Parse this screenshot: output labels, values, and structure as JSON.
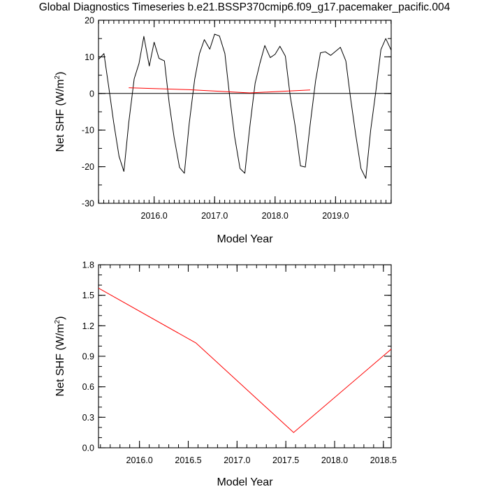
{
  "title": "Global Diagnostics Timeseries b.e21.BSSP370cmip6.f09_g17.pacemaker_pacific.004",
  "chart_data": [
    {
      "type": "line",
      "xlabel": "Model Year",
      "ylabel_main": "Net SHF (W/m",
      "ylabel_sup": "2",
      "ylabel_close": ")",
      "xlim": [
        2015.08,
        2019.92
      ],
      "ylim": [
        -30,
        20
      ],
      "xticks": [
        2016.0,
        2017.0,
        2018.0,
        2019.0
      ],
      "xtick_labels": [
        "2016.0",
        "2017.0",
        "2018.0",
        "2019.0"
      ],
      "yticks": [
        -30,
        -20,
        -10,
        0,
        10,
        20
      ],
      "ytick_labels": [
        "-30",
        "-20",
        "-10",
        "0",
        "10",
        "20"
      ],
      "zero_line": 0,
      "grid": false,
      "series": [
        {
          "color": "#000000",
          "x": [
            2015.08,
            2015.17,
            2015.25,
            2015.33,
            2015.42,
            2015.5,
            2015.58,
            2015.67,
            2015.75,
            2015.83,
            2015.92,
            2016.0,
            2016.08,
            2016.17,
            2016.25,
            2016.33,
            2016.42,
            2016.5,
            2016.58,
            2016.67,
            2016.75,
            2016.83,
            2016.92,
            2017.0,
            2017.08,
            2017.17,
            2017.25,
            2017.33,
            2017.42,
            2017.5,
            2017.58,
            2017.67,
            2017.75,
            2017.83,
            2017.92,
            2018.0,
            2018.08,
            2018.17,
            2018.25,
            2018.33,
            2018.42,
            2018.5,
            2018.58,
            2018.67,
            2018.75,
            2018.83,
            2018.92,
            2019.0,
            2019.08,
            2019.17,
            2019.25,
            2019.33,
            2019.42,
            2019.5,
            2019.58,
            2019.67,
            2019.75,
            2019.83,
            2019.92
          ],
          "y": [
            9.3,
            10.9,
            1.7,
            -7.8,
            -17.2,
            -21.3,
            -8.0,
            4.0,
            8.2,
            15.6,
            7.5,
            14.0,
            9.6,
            8.9,
            -2.8,
            -12.0,
            -20.2,
            -21.8,
            -8.2,
            3.8,
            10.9,
            14.7,
            12.1,
            16.2,
            15.7,
            10.9,
            -1.0,
            -11.7,
            -20.5,
            -21.8,
            -9.4,
            2.8,
            8.3,
            13.1,
            9.8,
            10.7,
            12.9,
            10.2,
            -0.7,
            -8.7,
            -19.8,
            -20.1,
            -8.5,
            3.5,
            11.1,
            11.4,
            10.4,
            11.5,
            12.6,
            8.9,
            -1.5,
            -10.9,
            -20.5,
            -23.2,
            -10.1,
            1.1,
            12.0,
            15.0,
            11.8
          ]
        },
        {
          "color": "#ff0000",
          "x": [
            2015.58,
            2016.58,
            2017.58,
            2018.58
          ],
          "y": [
            1.57,
            1.03,
            0.15,
            0.97
          ]
        }
      ]
    },
    {
      "type": "line",
      "xlabel": "Model Year",
      "ylabel_main": "Net SHF (W/m",
      "ylabel_sup": "2",
      "ylabel_close": ")",
      "xlim": [
        2015.58,
        2018.58
      ],
      "ylim": [
        0,
        1.8
      ],
      "xticks": [
        2016.0,
        2016.5,
        2017.0,
        2017.5,
        2018.0,
        2018.5
      ],
      "xtick_labels": [
        "2016.0",
        "2016.5",
        "2017.0",
        "2017.5",
        "2018.0",
        "2018.5"
      ],
      "yticks": [
        0.0,
        0.3,
        0.6,
        0.9,
        1.2,
        1.5,
        1.8
      ],
      "ytick_labels": [
        "0.0",
        "0.3",
        "0.6",
        "0.9",
        "1.2",
        "1.5",
        "1.8"
      ],
      "grid": false,
      "series": [
        {
          "color": "#ff0000",
          "x": [
            2015.58,
            2016.58,
            2017.58,
            2018.58
          ],
          "y": [
            1.57,
            1.03,
            0.15,
            0.97
          ]
        }
      ]
    }
  ]
}
